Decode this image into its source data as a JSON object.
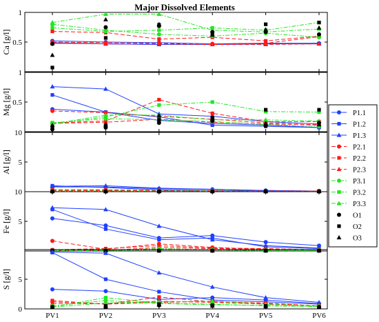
{
  "chart_data": {
    "type": "line",
    "title": "Major Dissolved Elements",
    "categories": [
      "PV1",
      "PV2",
      "PV3",
      "PV4",
      "PV5",
      "PV6"
    ],
    "series_styles": [
      {
        "name": "P1.1",
        "color": "#1f3fff",
        "marker": "circle",
        "dash": "solid"
      },
      {
        "name": "P1.2",
        "color": "#1f3fff",
        "marker": "square",
        "dash": "solid"
      },
      {
        "name": "P1.3",
        "color": "#1f3fff",
        "marker": "triangle",
        "dash": "solid"
      },
      {
        "name": "P2.1",
        "color": "#ff1a1a",
        "marker": "circle",
        "dash": "dashed"
      },
      {
        "name": "P2.2",
        "color": "#ff1a1a",
        "marker": "square",
        "dash": "dashed"
      },
      {
        "name": "P2.3",
        "color": "#ff1a1a",
        "marker": "triangle",
        "dash": "dashed"
      },
      {
        "name": "P3.1",
        "color": "#22e622",
        "marker": "circle",
        "dash": "dashdot"
      },
      {
        "name": "P3.2",
        "color": "#22e622",
        "marker": "square",
        "dash": "dashdot"
      },
      {
        "name": "P3.3",
        "color": "#22e622",
        "marker": "triangle",
        "dash": "dashdot"
      },
      {
        "name": "O1",
        "color": "#000000",
        "marker": "circle",
        "dash": "none"
      },
      {
        "name": "O2",
        "color": "#000000",
        "marker": "square",
        "dash": "none"
      },
      {
        "name": "O3",
        "color": "#000000",
        "marker": "triangle",
        "dash": "none"
      }
    ],
    "legend_position": "right",
    "panels": [
      {
        "ylabel": "Ca [g/l]",
        "ylim": [
          0,
          1
        ],
        "yticks": [
          "0",
          "0.5",
          "1"
        ],
        "top_tick_label": "1",
        "series": [
          {
            "name": "P1.1",
            "values": [
              0.52,
              0.5,
              0.49,
              0.47,
              0.48,
              0.48
            ]
          },
          {
            "name": "P1.2",
            "values": [
              0.49,
              0.47,
              0.46,
              0.46,
              0.47,
              0.47
            ]
          },
          {
            "name": "P1.3",
            "values": [
              0.48,
              0.47,
              0.46,
              0.46,
              0.47,
              0.48
            ]
          },
          {
            "name": "P2.1",
            "values": [
              0.5,
              0.49,
              0.48,
              0.47,
              0.48,
              0.59
            ]
          },
          {
            "name": "P2.2",
            "values": [
              0.68,
              0.66,
              0.55,
              0.58,
              0.52,
              0.6
            ]
          },
          {
            "name": "P2.3",
            "values": [
              0.48,
              0.47,
              0.47,
              0.46,
              0.46,
              0.47
            ]
          },
          {
            "name": "P3.1",
            "values": [
              0.8,
              0.7,
              0.63,
              0.6,
              0.65,
              0.58
            ]
          },
          {
            "name": "P3.2",
            "values": [
              0.74,
              0.68,
              0.7,
              0.74,
              0.7,
              0.83
            ]
          },
          {
            "name": "P3.3",
            "values": [
              0.83,
              0.97,
              0.97,
              0.7,
              0.67,
              0.72
            ]
          },
          {
            "name": "O1",
            "values": [
              0.47,
              0.75,
              0.77,
              0.67,
              0.67,
              0.63
            ]
          },
          {
            "name": "O2",
            "values": [
              0.07,
              0.57,
              0.79,
              0.64,
              0.8,
              0.83
            ]
          },
          {
            "name": "O3",
            "values": [
              0.28,
              0.88,
              0.8,
              0.62,
              0.71,
              0.74
            ]
          }
        ]
      },
      {
        "ylabel": "Mg [g/l]",
        "ylim": [
          0,
          1
        ],
        "yticks": [
          "0",
          "0.5",
          "1"
        ],
        "top_tick_label": "1",
        "series": [
          {
            "name": "P1.1",
            "values": [
              0.38,
              0.33,
              0.19,
              0.14,
              0.11,
              0.07
            ]
          },
          {
            "name": "P1.2",
            "values": [
              0.62,
              0.33,
              0.25,
              0.11,
              0.09,
              0.07
            ]
          },
          {
            "name": "P1.3",
            "values": [
              0.76,
              0.72,
              0.3,
              0.26,
              0.17,
              0.13
            ]
          },
          {
            "name": "P2.1",
            "values": [
              0.35,
              0.32,
              0.26,
              0.21,
              0.15,
              0.11
            ]
          },
          {
            "name": "P2.2",
            "values": [
              0.15,
              0.18,
              0.54,
              0.31,
              0.17,
              0.17
            ]
          },
          {
            "name": "P2.3",
            "values": [
              0.14,
              0.16,
              0.21,
              0.16,
              0.13,
              0.12
            ]
          },
          {
            "name": "P3.1",
            "values": [
              0.15,
              0.22,
              0.2,
              0.17,
              0.12,
              0.09
            ]
          },
          {
            "name": "P3.2",
            "values": [
              0.13,
              0.25,
              0.45,
              0.5,
              0.34,
              0.33
            ]
          },
          {
            "name": "P3.3",
            "values": [
              0.13,
              0.28,
              0.28,
              0.2,
              0.2,
              0.18
            ]
          },
          {
            "name": "O1",
            "values": [
              0.04,
              0.07,
              0.15,
              0.18,
              0.1,
              0.15
            ]
          },
          {
            "name": "O2",
            "values": [
              0.06,
              0.1,
              0.2,
              0.24,
              0.37,
              0.37
            ]
          },
          {
            "name": "O3",
            "values": [
              0.11,
              0.12,
              0.27,
              0.22,
              0.14,
              0.12
            ]
          }
        ]
      },
      {
        "ylabel": "Al [g/l]",
        "ylim": [
          0,
          10
        ],
        "yticks": [
          "0",
          "5",
          "10"
        ],
        "top_tick_label": "10",
        "series": [
          {
            "name": "P1.1",
            "values": [
              0.8,
              0.8,
              0.5,
              0.4,
              0.2,
              0.1
            ]
          },
          {
            "name": "P1.2",
            "values": [
              1.0,
              0.7,
              0.3,
              0.2,
              0.15,
              0.1
            ]
          },
          {
            "name": "P1.3",
            "values": [
              0.9,
              1.0,
              0.6,
              0.4,
              0.2,
              0.1
            ]
          },
          {
            "name": "P2.1",
            "values": [
              0.3,
              0.3,
              0.2,
              0.15,
              0.1,
              0.1
            ]
          },
          {
            "name": "P2.2",
            "values": [
              0.3,
              0.3,
              0.2,
              0.15,
              0.1,
              0.1
            ]
          },
          {
            "name": "P2.3",
            "values": [
              0.2,
              0.2,
              0.15,
              0.1,
              0.1,
              0.1
            ]
          },
          {
            "name": "P3.1",
            "values": [
              0.1,
              0.1,
              0.1,
              0.1,
              0.05,
              0.05
            ]
          },
          {
            "name": "P3.2",
            "values": [
              0.1,
              0.1,
              0.1,
              0.1,
              0.05,
              0.05
            ]
          },
          {
            "name": "P3.3",
            "values": [
              0.1,
              0.1,
              0.1,
              0.1,
              0.05,
              0.05
            ]
          },
          {
            "name": "O1",
            "values": [
              0.05,
              0.05,
              0.05,
              0.05,
              0.05,
              0.05
            ]
          },
          {
            "name": "O2",
            "values": [
              0.05,
              0.05,
              0.05,
              0.05,
              0.05,
              0.05
            ]
          },
          {
            "name": "O3",
            "values": [
              0.05,
              0.05,
              0.05,
              0.05,
              0.05,
              0.05
            ]
          }
        ]
      },
      {
        "ylabel": "Fe [g/l]",
        "ylim": [
          0,
          10
        ],
        "yticks": [
          "0",
          "5",
          "10"
        ],
        "top_tick_label": "10",
        "series": [
          {
            "name": "P1.1",
            "values": [
              5.5,
              4.3,
              2.2,
              2.6,
              1.5,
              0.9
            ]
          },
          {
            "name": "P1.2",
            "values": [
              7.0,
              3.7,
              1.9,
              2.2,
              0.7,
              0.4
            ]
          },
          {
            "name": "P1.3",
            "values": [
              7.3,
              7.0,
              4.2,
              1.9,
              0.9,
              0.5
            ]
          },
          {
            "name": "P2.1",
            "values": [
              1.7,
              0.3,
              1.2,
              0.6,
              0.3,
              0.2
            ]
          },
          {
            "name": "P2.2",
            "values": [
              0.2,
              0.4,
              0.9,
              0.5,
              0.4,
              0.2
            ]
          },
          {
            "name": "P2.3",
            "values": [
              0.1,
              0.1,
              0.6,
              0.4,
              0.3,
              0.2
            ]
          },
          {
            "name": "P3.1",
            "values": [
              0.05,
              0.1,
              0.4,
              0.2,
              0.1,
              0.1
            ]
          },
          {
            "name": "P3.2",
            "values": [
              0.05,
              0.1,
              0.3,
              0.2,
              0.1,
              0.1
            ]
          },
          {
            "name": "P3.3",
            "values": [
              0.05,
              0.1,
              0.2,
              0.2,
              0.1,
              0.1
            ]
          },
          {
            "name": "O1",
            "values": [
              0.05,
              0.05,
              0.05,
              0.05,
              0.05,
              0.05
            ]
          },
          {
            "name": "O2",
            "values": [
              0.05,
              0.05,
              0.05,
              0.05,
              0.05,
              0.05
            ]
          },
          {
            "name": "O3",
            "values": [
              0.05,
              0.05,
              0.05,
              0.05,
              0.05,
              0.05
            ]
          }
        ]
      },
      {
        "ylabel": "S [g/l]",
        "ylim": [
          0,
          10
        ],
        "yticks": [
          "0",
          "5",
          "10"
        ],
        "top_tick_label": null,
        "series": [
          {
            "name": "P1.1",
            "values": [
              3.3,
              3.0,
              1.6,
              1.9,
              1.5,
              0.9
            ]
          },
          {
            "name": "P1.2",
            "values": [
              9.5,
              5.0,
              2.9,
              1.5,
              1.2,
              0.8
            ]
          },
          {
            "name": "P1.3",
            "values": [
              9.6,
              9.4,
              6.1,
              3.7,
              1.9,
              1.1
            ]
          },
          {
            "name": "P2.1",
            "values": [
              1.2,
              0.8,
              1.1,
              1.3,
              0.9,
              0.5
            ]
          },
          {
            "name": "P2.2",
            "values": [
              1.4,
              0.8,
              2.0,
              1.2,
              1.0,
              0.5
            ]
          },
          {
            "name": "P2.3",
            "values": [
              0.9,
              0.9,
              1.3,
              1.1,
              0.8,
              0.5
            ]
          },
          {
            "name": "P3.1",
            "values": [
              0.5,
              1.4,
              0.9,
              0.7,
              0.6,
              0.4
            ]
          },
          {
            "name": "P3.2",
            "values": [
              0.3,
              1.9,
              1.0,
              0.8,
              0.5,
              0.4
            ]
          },
          {
            "name": "P3.3",
            "values": [
              0.3,
              1.0,
              1.2,
              1.3,
              0.8,
              0.5
            ]
          },
          {
            "name": "O1",
            "values": [
              0.3,
              0.3,
              0.6,
              0.6,
              0.4,
              0.3
            ]
          },
          {
            "name": "O2",
            "values": [
              0.3,
              0.5,
              0.8,
              0.6,
              0.5,
              0.3
            ]
          },
          {
            "name": "O3",
            "values": [
              0.3,
              0.4,
              0.7,
              0.5,
              0.4,
              0.3
            ]
          }
        ]
      }
    ]
  }
}
